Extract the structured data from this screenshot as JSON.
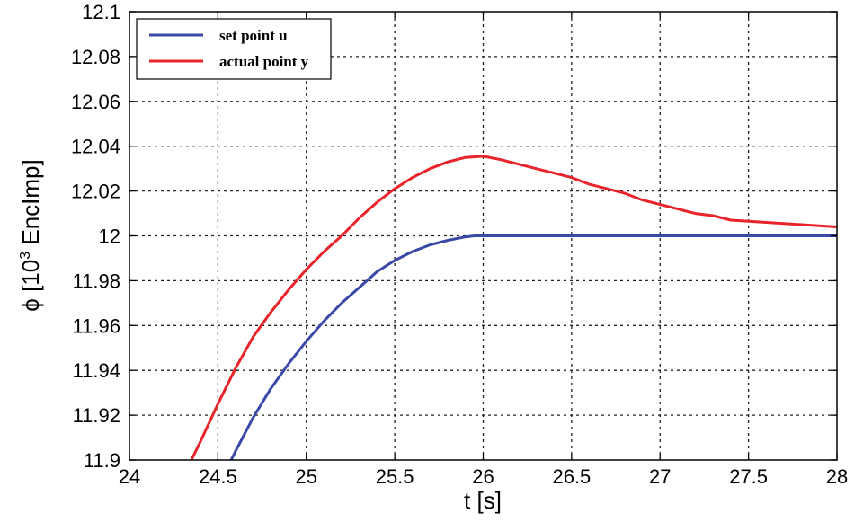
{
  "chart_data": {
    "type": "line",
    "title": "",
    "xlabel": "t [s]",
    "ylabel_parts": {
      "prefix": "ϕ [10",
      "exp": "3",
      "suffix": " EncImp]"
    },
    "xlim": [
      24,
      28
    ],
    "ylim": [
      11.9,
      12.1
    ],
    "grid": true,
    "legend_position": "top-left",
    "x_ticks": [
      "24",
      "24.5",
      "25",
      "25.5",
      "26",
      "26.5",
      "27",
      "27.5",
      "28"
    ],
    "y_ticks": [
      "11.9",
      "11.92",
      "11.94",
      "11.96",
      "11.98",
      "12",
      "12.02",
      "12.04",
      "12.06",
      "12.08",
      "12.1"
    ],
    "series": [
      {
        "name": "set point u",
        "color": "#3a49a8",
        "x": [
          24.55,
          24.6,
          24.7,
          24.8,
          24.9,
          25.0,
          25.1,
          25.2,
          25.3,
          25.4,
          25.5,
          25.6,
          25.7,
          25.8,
          25.9,
          25.95,
          26.0,
          26.5,
          27.0,
          27.5,
          28.0
        ],
        "y": [
          11.896,
          11.904,
          11.919,
          11.932,
          11.943,
          11.953,
          11.962,
          11.97,
          11.977,
          11.984,
          11.989,
          11.993,
          11.996,
          11.998,
          11.9995,
          12.0,
          12.0,
          12.0,
          12.0,
          12.0,
          12.0
        ]
      },
      {
        "name": "actual point y",
        "color": "#e8232a",
        "x": [
          24.33,
          24.35,
          24.4,
          24.5,
          24.6,
          24.7,
          24.8,
          24.9,
          25.0,
          25.1,
          25.2,
          25.3,
          25.4,
          25.5,
          25.6,
          25.7,
          25.8,
          25.9,
          26.0,
          26.1,
          26.2,
          26.3,
          26.4,
          26.5,
          26.6,
          26.7,
          26.8,
          26.9,
          27.0,
          27.1,
          27.2,
          27.3,
          27.4,
          27.5,
          27.6,
          27.7,
          27.8,
          27.9,
          28.0
        ],
        "y": [
          11.896,
          11.9,
          11.908,
          11.925,
          11.941,
          11.955,
          11.966,
          11.976,
          11.985,
          11.993,
          12.0,
          12.008,
          12.015,
          12.021,
          12.026,
          12.03,
          12.033,
          12.035,
          12.0355,
          12.034,
          12.032,
          12.03,
          12.028,
          12.026,
          12.023,
          12.021,
          12.019,
          12.016,
          12.014,
          12.012,
          12.01,
          12.009,
          12.007,
          12.0065,
          12.006,
          12.0055,
          12.005,
          12.0045,
          12.004
        ]
      }
    ]
  }
}
